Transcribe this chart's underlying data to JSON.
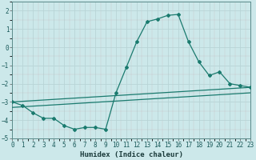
{
  "bg_color": "#cce8ea",
  "grid_color_major": "#b8d4d6",
  "grid_color_minor": "#daeced",
  "line_color": "#1a7a6e",
  "x_min": 0,
  "x_max": 23,
  "y_min": -5,
  "y_max": 2.5,
  "y_ticks": [
    -5,
    -4,
    -3,
    -2,
    -1,
    0,
    1,
    2
  ],
  "xlabel": "Humidex (Indice chaleur)",
  "line1_x": [
    0,
    1,
    2,
    3,
    4,
    5,
    6,
    7,
    8,
    9,
    10,
    11,
    12,
    13,
    14,
    15,
    16,
    17,
    18,
    19,
    20,
    21,
    22,
    23
  ],
  "line1_y": [
    -3.0,
    -3.2,
    -3.6,
    -3.9,
    -3.9,
    -4.3,
    -4.5,
    -4.4,
    -4.4,
    -4.5,
    -2.5,
    -1.1,
    0.3,
    1.4,
    1.55,
    1.75,
    1.8,
    0.3,
    -0.8,
    -1.55,
    -1.35,
    -2.0,
    -2.1,
    -2.2
  ],
  "line2_x": [
    0,
    23
  ],
  "line2_y": [
    -3.0,
    -2.2
  ],
  "line3_x": [
    0,
    23
  ],
  "line3_y": [
    -3.3,
    -2.5
  ],
  "font_size_ticks": 5.5,
  "font_size_xlabel": 6.5
}
